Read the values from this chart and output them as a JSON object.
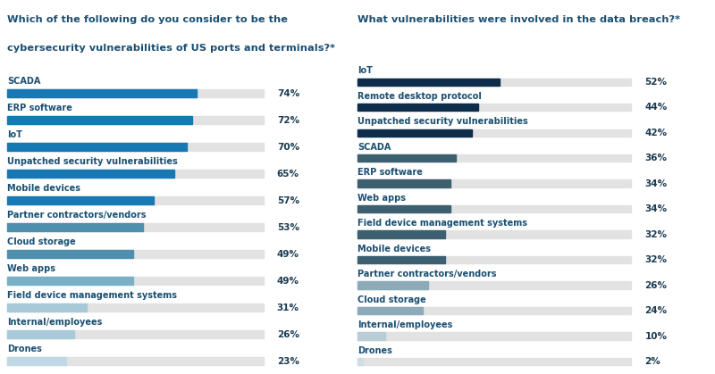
{
  "left_title_line1": "Which of the following do you consider to be the",
  "left_title_line2": "cybersecurity vulnerabilities of US ports and terminals?*",
  "right_title": "What vulnerabilities were involved in the data breach?*",
  "left_categories": [
    "SCADA",
    "ERP software",
    "IoT",
    "Unpatched security vulnerabilities",
    "Mobile devices",
    "Partner contractors/vendors",
    "Cloud storage",
    "Web apps",
    "Field device management systems",
    "Internal/employees",
    "Drones"
  ],
  "left_values": [
    74,
    72,
    70,
    65,
    57,
    53,
    49,
    49,
    31,
    26,
    23
  ],
  "left_colors": [
    "#1878b4",
    "#1878b4",
    "#1878b4",
    "#1878b4",
    "#1878b4",
    "#4d8fad",
    "#4d8fad",
    "#7aafc8",
    "#a8cad8",
    "#a8cad8",
    "#c0d8e4"
  ],
  "right_categories": [
    "IoT",
    "Remote desktop protocol",
    "Unpatched security vulnerabilities",
    "SCADA",
    "ERP software",
    "Web apps",
    "Field device management systems",
    "Mobile devices",
    "Partner contractors/vendors",
    "Cloud storage",
    "Internal/employees",
    "Drones"
  ],
  "right_values": [
    52,
    44,
    42,
    36,
    34,
    34,
    32,
    32,
    26,
    24,
    10,
    2
  ],
  "right_colors": [
    "#0d2d4a",
    "#0d2d4a",
    "#0d2d4a",
    "#3d6070",
    "#3d6070",
    "#3d6070",
    "#3d6070",
    "#3d6070",
    "#8daab8",
    "#8daab8",
    "#b8cdd6",
    "#d0dde4"
  ],
  "title_color": "#1a4f72",
  "label_color": "#1a4f72",
  "value_color": "#1a3a50",
  "bg_color": "#ffffff",
  "bar_bg_color": "#e2e2e2",
  "max_val": 100
}
